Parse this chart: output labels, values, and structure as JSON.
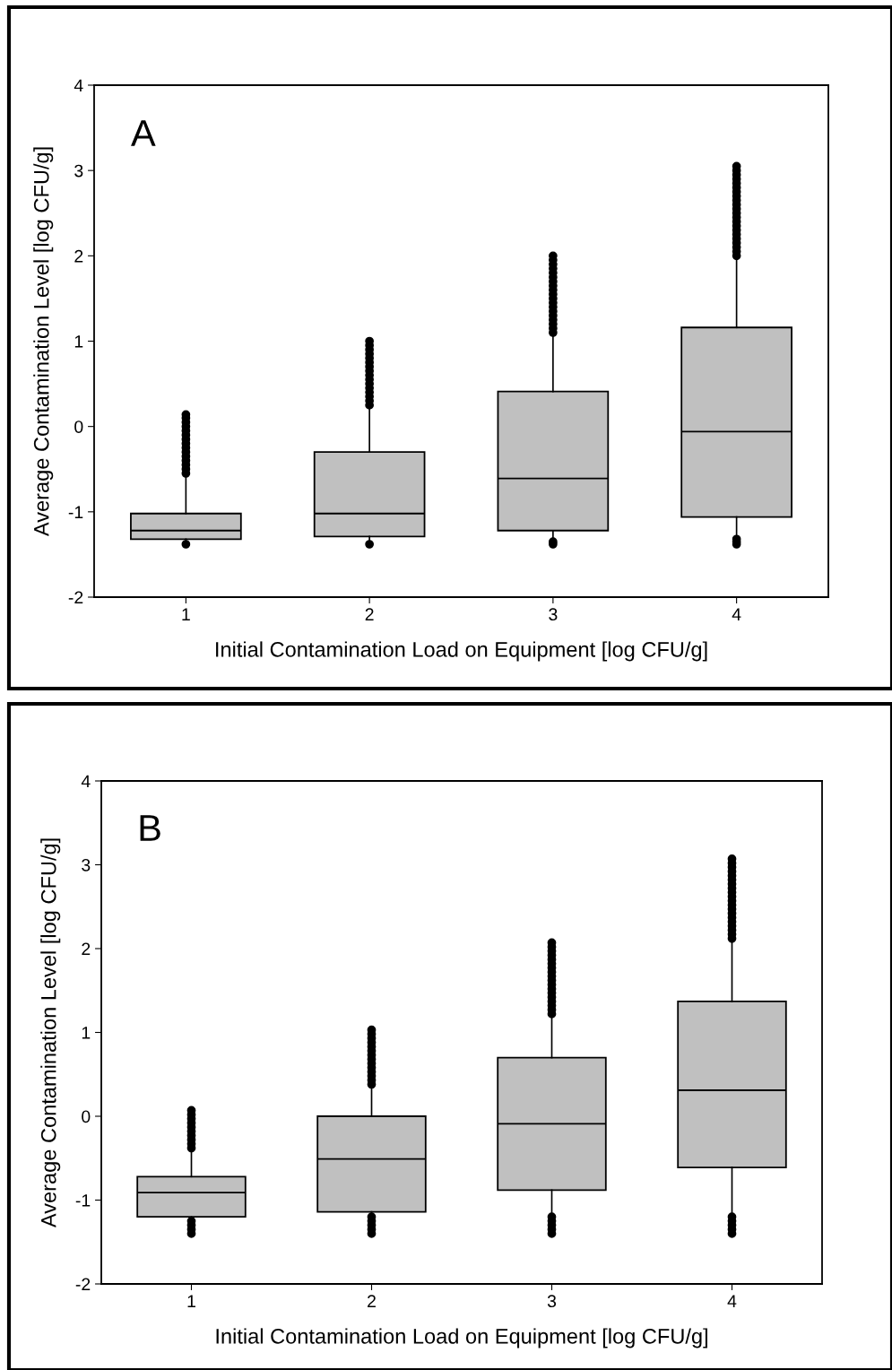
{
  "chart_data": [
    {
      "type": "box",
      "xlabel": "Initial Contamination Load on Equipment [log CFU/g]",
      "ylabel": "Average Contamination Level [log CFU/g]",
      "annotations": [
        "A"
      ],
      "categories": [
        "1",
        "2",
        "3",
        "4"
      ],
      "color": "#c0c0c0",
      "ylim": [
        -2,
        4
      ],
      "yticks": [
        -2,
        -1,
        0,
        1,
        2,
        3,
        4
      ],
      "grid": false,
      "boxes": [
        {
          "low": -1.35,
          "q1": -1.32,
          "median": -1.22,
          "q3": -1.02,
          "high": -0.6,
          "outliers": [
            -1.38,
            -0.55,
            -0.5,
            -0.45,
            -0.4,
            -0.35,
            -0.3,
            -0.25,
            -0.2,
            -0.15,
            -0.1,
            -0.05,
            0,
            0.05,
            0.1,
            0.14
          ]
        },
        {
          "low": -1.33,
          "q1": -1.29,
          "median": -1.02,
          "q3": -0.3,
          "high": 0.2,
          "outliers": [
            -1.38,
            0.25,
            0.3,
            0.35,
            0.4,
            0.45,
            0.5,
            0.55,
            0.6,
            0.65,
            0.7,
            0.75,
            0.8,
            0.85,
            0.9,
            0.95,
            1.0
          ]
        },
        {
          "low": -1.3,
          "q1": -1.22,
          "median": -0.61,
          "q3": 0.41,
          "high": 1.08,
          "outliers": [
            -1.38,
            -1.35,
            1.1,
            1.15,
            1.2,
            1.25,
            1.3,
            1.35,
            1.4,
            1.45,
            1.5,
            1.55,
            1.6,
            1.65,
            1.7,
            1.75,
            1.8,
            1.85,
            1.9,
            1.95,
            2.0
          ]
        },
        {
          "low": -1.28,
          "q1": -1.06,
          "median": -0.06,
          "q3": 1.16,
          "high": 1.95,
          "outliers": [
            -1.38,
            -1.35,
            -1.32,
            2.0,
            2.05,
            2.1,
            2.15,
            2.2,
            2.25,
            2.3,
            2.35,
            2.4,
            2.45,
            2.5,
            2.55,
            2.6,
            2.65,
            2.7,
            2.75,
            2.8,
            2.85,
            2.9,
            2.95,
            3.0,
            3.05
          ]
        }
      ]
    },
    {
      "type": "box",
      "xlabel": "Initial Contamination Load on Equipment [log CFU/g]",
      "ylabel": "Average Contamination Level [log CFU/g]",
      "annotations": [
        "B"
      ],
      "categories": [
        "1",
        "2",
        "3",
        "4"
      ],
      "color": "#c0c0c0",
      "ylim": [
        -2,
        4
      ],
      "yticks": [
        -2,
        -1,
        0,
        1,
        2,
        3,
        4
      ],
      "grid": false,
      "boxes": [
        {
          "low": -1.23,
          "q1": -1.2,
          "median": -0.91,
          "q3": -0.72,
          "high": -0.42,
          "outliers": [
            -1.25,
            -1.3,
            -1.35,
            -1.4,
            -0.38,
            -0.33,
            -0.28,
            -0.23,
            -0.18,
            -0.13,
            -0.08,
            -0.03,
            0.02,
            0.07
          ]
        },
        {
          "low": -1.18,
          "q1": -1.14,
          "median": -0.51,
          "q3": 0,
          "high": 0.35,
          "outliers": [
            -1.2,
            -1.25,
            -1.3,
            -1.35,
            -1.4,
            0.38,
            0.43,
            0.48,
            0.53,
            0.58,
            0.63,
            0.68,
            0.73,
            0.78,
            0.83,
            0.88,
            0.93,
            0.98,
            1.03
          ]
        },
        {
          "low": -1.15,
          "q1": -0.88,
          "median": -0.09,
          "q3": 0.7,
          "high": 1.2,
          "outliers": [
            -1.2,
            -1.25,
            -1.3,
            -1.35,
            -1.4,
            1.22,
            1.27,
            1.32,
            1.37,
            1.42,
            1.47,
            1.52,
            1.57,
            1.62,
            1.67,
            1.72,
            1.77,
            1.82,
            1.87,
            1.92,
            1.97,
            2.02,
            2.07
          ]
        },
        {
          "low": -1.15,
          "q1": -0.61,
          "median": 0.31,
          "q3": 1.37,
          "high": 2.1,
          "outliers": [
            -1.2,
            -1.25,
            -1.3,
            -1.35,
            -1.4,
            2.12,
            2.17,
            2.22,
            2.27,
            2.32,
            2.37,
            2.42,
            2.47,
            2.52,
            2.57,
            2.62,
            2.67,
            2.72,
            2.77,
            2.82,
            2.87,
            2.92,
            2.97,
            3.02,
            3.07
          ]
        }
      ]
    }
  ]
}
